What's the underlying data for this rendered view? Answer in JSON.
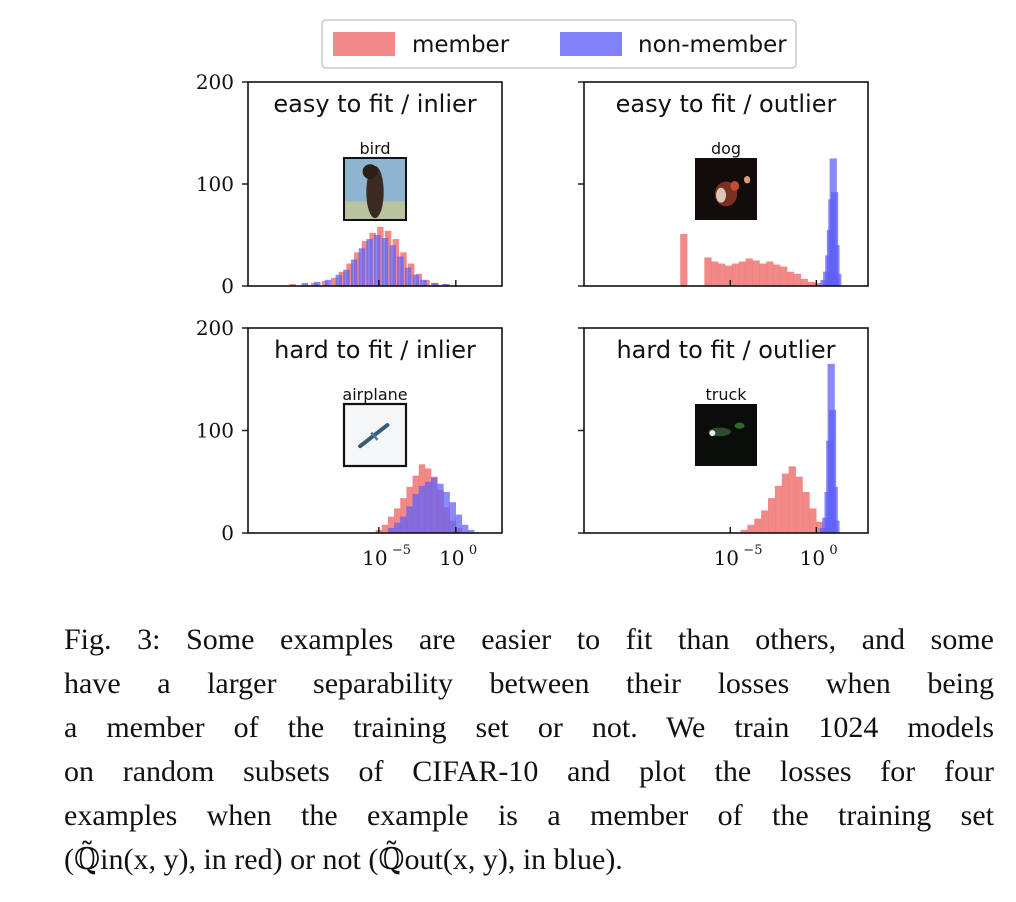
{
  "legend": {
    "member_label": "member",
    "nonmember_label": "non-member",
    "member_color": "#ef6b6b",
    "nonmember_color": "#6262f7"
  },
  "chart_data": {
    "type": "histogram-grid",
    "y_ticks": [
      "200",
      "100",
      "0"
    ],
    "x_ticks": [
      {
        "base": "10",
        "exp": "−5"
      },
      {
        "base": "10",
        "exp": "0"
      }
    ],
    "x_scale": "log",
    "ylim": [
      0,
      200
    ],
    "panels": [
      {
        "id": "easy-inlier",
        "title": "easy to fit / inlier",
        "image_label": "bird",
        "member": [
          [
            -10.6,
            2
          ],
          [
            -9.2,
            3
          ],
          [
            -8.5,
            5
          ],
          [
            -7.9,
            8
          ],
          [
            -7.4,
            14
          ],
          [
            -6.9,
            22
          ],
          [
            -6.4,
            33
          ],
          [
            -5.9,
            44
          ],
          [
            -5.4,
            52
          ],
          [
            -4.9,
            58
          ],
          [
            -4.4,
            54
          ],
          [
            -3.9,
            46
          ],
          [
            -3.4,
            33
          ],
          [
            -2.9,
            22
          ],
          [
            -2.4,
            12
          ],
          [
            -1.9,
            6
          ],
          [
            -1.3,
            3
          ],
          [
            -0.6,
            2
          ]
        ],
        "nonmember": [
          [
            -9.8,
            3
          ],
          [
            -9.0,
            4
          ],
          [
            -8.3,
            6
          ],
          [
            -7.6,
            11
          ],
          [
            -7.1,
            16
          ],
          [
            -6.6,
            26
          ],
          [
            -6.1,
            37
          ],
          [
            -5.6,
            46
          ],
          [
            -5.1,
            50
          ],
          [
            -4.6,
            47
          ],
          [
            -4.1,
            40
          ],
          [
            -3.6,
            29
          ],
          [
            -3.1,
            18
          ],
          [
            -2.6,
            11
          ],
          [
            -2.1,
            6
          ],
          [
            -1.4,
            3
          ],
          [
            -0.7,
            2
          ]
        ]
      },
      {
        "id": "easy-outlier",
        "title": "easy to fit / outlier",
        "image_label": "dog",
        "member": [
          [
            -7.7,
            51
          ],
          [
            -6.3,
            28
          ],
          [
            -5.9,
            24
          ],
          [
            -5.5,
            22
          ],
          [
            -5.1,
            20
          ],
          [
            -4.7,
            22
          ],
          [
            -4.3,
            24
          ],
          [
            -3.9,
            27
          ],
          [
            -3.5,
            25
          ],
          [
            -3.1,
            22
          ],
          [
            -2.7,
            24
          ],
          [
            -2.3,
            21
          ],
          [
            -1.9,
            19
          ],
          [
            -1.5,
            14
          ],
          [
            -1.1,
            12
          ],
          [
            -0.7,
            7
          ],
          [
            -0.3,
            4
          ],
          [
            0.1,
            3
          ]
        ],
        "nonmember": [
          [
            0.45,
            6
          ],
          [
            0.6,
            14
          ],
          [
            0.72,
            30
          ],
          [
            0.82,
            55
          ],
          [
            0.9,
            85
          ],
          [
            0.98,
            125
          ],
          [
            1.06,
            92
          ],
          [
            1.14,
            40
          ],
          [
            1.24,
            12
          ]
        ]
      },
      {
        "id": "hard-inlier",
        "title": "hard to fit / inlier",
        "image_label": "airplane",
        "member": [
          [
            -5.0,
            3
          ],
          [
            -4.6,
            8
          ],
          [
            -4.2,
            16
          ],
          [
            -3.8,
            24
          ],
          [
            -3.4,
            34
          ],
          [
            -3.0,
            45
          ],
          [
            -2.6,
            56
          ],
          [
            -2.2,
            67
          ],
          [
            -1.8,
            63
          ],
          [
            -1.4,
            55
          ],
          [
            -1.0,
            42
          ],
          [
            -0.6,
            25
          ],
          [
            -0.2,
            12
          ],
          [
            0.2,
            5
          ]
        ],
        "nonmember": [
          [
            -4.2,
            5
          ],
          [
            -3.8,
            10
          ],
          [
            -3.4,
            16
          ],
          [
            -3.0,
            26
          ],
          [
            -2.6,
            38
          ],
          [
            -2.2,
            46
          ],
          [
            -1.8,
            50
          ],
          [
            -1.4,
            54
          ],
          [
            -1.0,
            48
          ],
          [
            -0.6,
            40
          ],
          [
            -0.2,
            30
          ],
          [
            0.2,
            18
          ],
          [
            0.6,
            8
          ],
          [
            1.0,
            3
          ]
        ]
      },
      {
        "id": "hard-outlier",
        "title": "hard to fit / outlier",
        "image_label": "truck",
        "member": [
          [
            -4.2,
            3
          ],
          [
            -3.8,
            8
          ],
          [
            -3.4,
            14
          ],
          [
            -3.0,
            22
          ],
          [
            -2.6,
            34
          ],
          [
            -2.2,
            46
          ],
          [
            -1.8,
            58
          ],
          [
            -1.4,
            65
          ],
          [
            -1.0,
            55
          ],
          [
            -0.6,
            40
          ],
          [
            -0.2,
            24
          ],
          [
            0.2,
            11
          ],
          [
            0.6,
            5
          ]
        ],
        "nonmember": [
          [
            0.4,
            5
          ],
          [
            0.55,
            15
          ],
          [
            0.68,
            40
          ],
          [
            0.78,
            90
          ],
          [
            0.86,
            165
          ],
          [
            0.94,
            120
          ],
          [
            1.04,
            45
          ],
          [
            1.14,
            12
          ]
        ]
      }
    ]
  },
  "caption": {
    "lines": [
      "Fig. 3: Some examples are easier to fit than others, and some",
      "have a larger separability between their losses when being",
      "a member of the training set or not. We train 1024 models",
      "on random subsets of CIFAR-10 and plot the losses for four",
      "examples when the example is a member of the training set",
      "(ℚ̃in(x, y), in red) or not (ℚ̃out(x, y), in blue)."
    ]
  }
}
